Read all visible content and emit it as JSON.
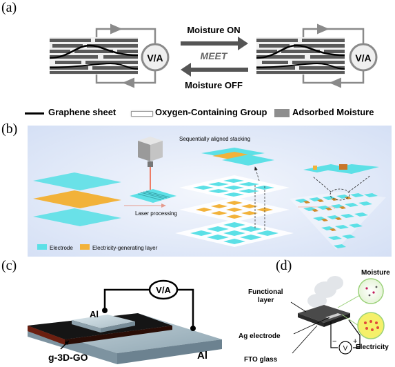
{
  "panel_a": {
    "label": "(a)",
    "meter": "V/A",
    "moisture_on": "Moisture ON",
    "meet": "MEET",
    "moisture_off": "Moisture OFF"
  },
  "legend": {
    "graphene": "Graphene sheet",
    "oxygen": "Oxygen-Containing Group",
    "moisture": "Adsorbed Moisture"
  },
  "panel_b": {
    "label": "(b)",
    "stacking": "Sequentially aligned stacking",
    "laser": "Laser processing",
    "legend_electrode": "Electrode",
    "legend_layer": "Electricity-generating layer"
  },
  "panel_c": {
    "label": "(c)",
    "meter": "V/A",
    "al_top": "Al",
    "material": "g-3D-GO",
    "al_bottom": "Al"
  },
  "panel_d": {
    "label": "(d)",
    "functional": "Functional\nlayer",
    "moisture": "Moisture",
    "ag": "Ag electrode",
    "electricity": "Electricity",
    "fto": "FTO glass",
    "minus": "−",
    "volt": "V",
    "plus": "+"
  },
  "colors": {
    "electrode": "#5ce0e6",
    "gen_layer": "#f2b23a",
    "panel_b_bg": "#dfe8f8",
    "arrow_gray": "#555555"
  }
}
